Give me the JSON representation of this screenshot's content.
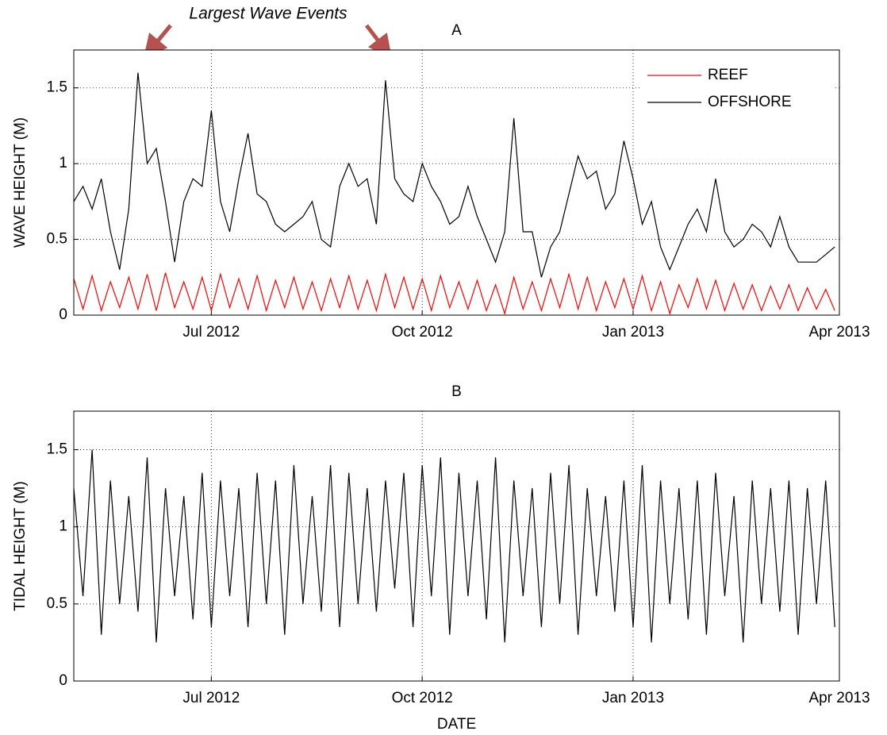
{
  "chart_data": [
    {
      "type": "line",
      "title": "A",
      "annotation": "Largest Wave Events",
      "ylabel": "WAVE HEIGHT (M)",
      "xlim": [
        "2012-05-02",
        "2013-04-01"
      ],
      "xticks": [
        {
          "value": "2012-07-01",
          "label": "Jul 2012"
        },
        {
          "value": "2012-10-01",
          "label": "Oct 2012"
        },
        {
          "value": "2013-01-01",
          "label": "Jan 2013"
        },
        {
          "value": "2013-04-01",
          "label": "Apr 2013"
        }
      ],
      "ylim": [
        0,
        1.75
      ],
      "yticks": [
        0,
        0.5,
        1,
        1.5
      ],
      "grid": true,
      "legend": "upper right",
      "x": [
        "2012-05-02",
        "2012-05-06",
        "2012-05-10",
        "2012-05-14",
        "2012-05-18",
        "2012-05-22",
        "2012-05-26",
        "2012-05-30",
        "2012-06-03",
        "2012-06-07",
        "2012-06-11",
        "2012-06-15",
        "2012-06-19",
        "2012-06-23",
        "2012-06-27",
        "2012-07-01",
        "2012-07-05",
        "2012-07-09",
        "2012-07-13",
        "2012-07-17",
        "2012-07-21",
        "2012-07-25",
        "2012-07-29",
        "2012-08-02",
        "2012-08-06",
        "2012-08-10",
        "2012-08-14",
        "2012-08-18",
        "2012-08-22",
        "2012-08-26",
        "2012-08-30",
        "2012-09-03",
        "2012-09-07",
        "2012-09-11",
        "2012-09-15",
        "2012-09-19",
        "2012-09-23",
        "2012-09-27",
        "2012-10-01",
        "2012-10-05",
        "2012-10-09",
        "2012-10-13",
        "2012-10-17",
        "2012-10-21",
        "2012-10-25",
        "2012-10-29",
        "2012-11-02",
        "2012-11-06",
        "2012-11-10",
        "2012-11-14",
        "2012-11-18",
        "2012-11-22",
        "2012-11-26",
        "2012-11-30",
        "2012-12-04",
        "2012-12-08",
        "2012-12-12",
        "2012-12-16",
        "2012-12-20",
        "2012-12-24",
        "2012-12-28",
        "2013-01-01",
        "2013-01-05",
        "2013-01-09",
        "2013-01-13",
        "2013-01-17",
        "2013-01-21",
        "2013-01-25",
        "2013-01-29",
        "2013-02-02",
        "2013-02-06",
        "2013-02-10",
        "2013-02-14",
        "2013-02-18",
        "2013-02-22",
        "2013-02-26",
        "2013-03-02",
        "2013-03-06",
        "2013-03-10",
        "2013-03-14",
        "2013-03-18",
        "2013-03-22",
        "2013-03-26",
        "2013-03-30"
      ],
      "series": [
        {
          "name": "REEF",
          "color": "#ff0000",
          "values": [
            0.24,
            0.04,
            0.26,
            0.03,
            0.22,
            0.05,
            0.25,
            0.04,
            0.27,
            0.03,
            0.28,
            0.05,
            0.22,
            0.04,
            0.25,
            0.03,
            0.27,
            0.05,
            0.24,
            0.04,
            0.26,
            0.03,
            0.23,
            0.05,
            0.25,
            0.04,
            0.22,
            0.03,
            0.24,
            0.05,
            0.26,
            0.04,
            0.23,
            0.03,
            0.27,
            0.05,
            0.25,
            0.04,
            0.24,
            0.03,
            0.26,
            0.05,
            0.22,
            0.04,
            0.23,
            0.03,
            0.2,
            0.01,
            0.25,
            0.04,
            0.22,
            0.03,
            0.24,
            0.05,
            0.27,
            0.04,
            0.25,
            0.03,
            0.22,
            0.05,
            0.24,
            0.04,
            0.26,
            0.03,
            0.22,
            0.01,
            0.2,
            0.05,
            0.24,
            0.04,
            0.23,
            0.03,
            0.21,
            0.04,
            0.2,
            0.03,
            0.19,
            0.04,
            0.2,
            0.03,
            0.18,
            0.04,
            0.17,
            0.03
          ]
        },
        {
          "name": "OFFSHORE",
          "color": "#000000",
          "values": [
            0.75,
            0.85,
            0.7,
            0.9,
            0.55,
            0.3,
            0.7,
            1.6,
            1.0,
            1.1,
            0.75,
            0.35,
            0.75,
            0.9,
            0.85,
            1.35,
            0.75,
            0.55,
            0.9,
            1.2,
            0.8,
            0.75,
            0.6,
            0.55,
            0.6,
            0.65,
            0.75,
            0.5,
            0.45,
            0.85,
            1.0,
            0.85,
            0.9,
            0.6,
            1.55,
            0.9,
            0.8,
            0.75,
            1.0,
            0.85,
            0.75,
            0.6,
            0.65,
            0.85,
            0.65,
            0.5,
            0.35,
            0.55,
            1.3,
            0.55,
            0.55,
            0.25,
            0.45,
            0.55,
            0.8,
            1.05,
            0.9,
            0.95,
            0.7,
            0.8,
            1.15,
            0.9,
            0.6,
            0.75,
            0.45,
            0.3,
            0.45,
            0.6,
            0.7,
            0.55,
            0.9,
            0.55,
            0.45,
            0.5,
            0.6,
            0.55,
            0.45,
            0.65,
            0.45,
            0.35,
            0.35,
            0.35,
            0.4,
            0.45
          ]
        }
      ]
    },
    {
      "type": "line",
      "title": "B",
      "xlabel": "DATE",
      "ylabel": "TIDAL HEIGHT (M)",
      "xlim": [
        "2012-05-02",
        "2013-04-01"
      ],
      "xticks": [
        {
          "value": "2012-07-01",
          "label": "Jul 2012"
        },
        {
          "value": "2012-10-01",
          "label": "Oct 2012"
        },
        {
          "value": "2013-01-01",
          "label": "Jan 2013"
        },
        {
          "value": "2013-04-01",
          "label": "Apr 2013"
        }
      ],
      "ylim": [
        0,
        1.75
      ],
      "yticks": [
        0,
        0.5,
        1,
        1.5
      ],
      "grid": true,
      "color": "#000000",
      "x": [
        "2012-05-02",
        "2012-05-06",
        "2012-05-10",
        "2012-05-14",
        "2012-05-18",
        "2012-05-22",
        "2012-05-26",
        "2012-05-30",
        "2012-06-03",
        "2012-06-07",
        "2012-06-11",
        "2012-06-15",
        "2012-06-19",
        "2012-06-23",
        "2012-06-27",
        "2012-07-01",
        "2012-07-05",
        "2012-07-09",
        "2012-07-13",
        "2012-07-17",
        "2012-07-21",
        "2012-07-25",
        "2012-07-29",
        "2012-08-02",
        "2012-08-06",
        "2012-08-10",
        "2012-08-14",
        "2012-08-18",
        "2012-08-22",
        "2012-08-26",
        "2012-08-30",
        "2012-09-03",
        "2012-09-07",
        "2012-09-11",
        "2012-09-15",
        "2012-09-19",
        "2012-09-23",
        "2012-09-27",
        "2012-10-01",
        "2012-10-05",
        "2012-10-09",
        "2012-10-13",
        "2012-10-17",
        "2012-10-21",
        "2012-10-25",
        "2012-10-29",
        "2012-11-02",
        "2012-11-06",
        "2012-11-10",
        "2012-11-14",
        "2012-11-18",
        "2012-11-22",
        "2012-11-26",
        "2012-11-30",
        "2012-12-04",
        "2012-12-08",
        "2012-12-12",
        "2012-12-16",
        "2012-12-20",
        "2012-12-24",
        "2012-12-28",
        "2013-01-01",
        "2013-01-05",
        "2013-01-09",
        "2013-01-13",
        "2013-01-17",
        "2013-01-21",
        "2013-01-25",
        "2013-01-29",
        "2013-02-02",
        "2013-02-06",
        "2013-02-10",
        "2013-02-14",
        "2013-02-18",
        "2013-02-22",
        "2013-02-26",
        "2013-03-02",
        "2013-03-06",
        "2013-03-10",
        "2013-03-14",
        "2013-03-18",
        "2013-03-22",
        "2013-03-26",
        "2013-03-30"
      ],
      "values": [
        1.25,
        0.55,
        1.5,
        0.3,
        1.3,
        0.5,
        1.2,
        0.45,
        1.45,
        0.25,
        1.25,
        0.55,
        1.2,
        0.4,
        1.35,
        0.35,
        1.3,
        0.55,
        1.25,
        0.35,
        1.35,
        0.5,
        1.3,
        0.3,
        1.4,
        0.5,
        1.2,
        0.45,
        1.4,
        0.35,
        1.35,
        0.5,
        1.25,
        0.45,
        1.3,
        0.6,
        1.35,
        0.35,
        1.4,
        0.55,
        1.45,
        0.3,
        1.35,
        0.55,
        1.3,
        0.4,
        1.45,
        0.25,
        1.3,
        0.55,
        1.25,
        0.35,
        1.35,
        0.5,
        1.4,
        0.3,
        1.25,
        0.55,
        1.2,
        0.45,
        1.3,
        0.35,
        1.4,
        0.25,
        1.3,
        0.5,
        1.25,
        0.4,
        1.3,
        0.3,
        1.35,
        0.55,
        1.2,
        0.25,
        1.3,
        0.5,
        1.25,
        0.45,
        1.3,
        0.3,
        1.25,
        0.5,
        1.3,
        0.35
      ]
    }
  ]
}
